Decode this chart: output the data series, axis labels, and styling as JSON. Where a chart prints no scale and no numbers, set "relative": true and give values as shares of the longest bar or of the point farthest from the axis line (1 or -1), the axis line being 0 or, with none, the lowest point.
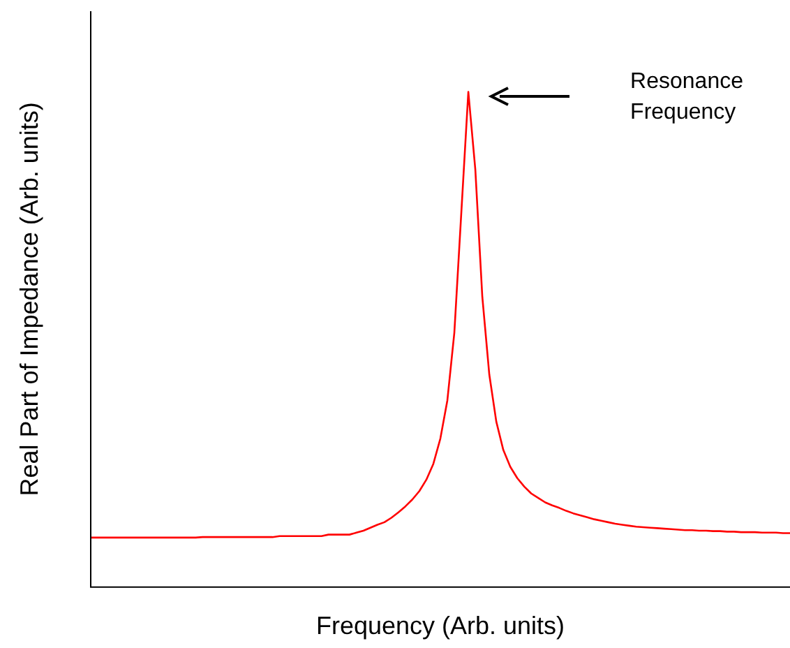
{
  "chart_data": {
    "type": "line",
    "relative": true,
    "xlabel": "Frequency (Arb. units)",
    "ylabel": "Real Part of Impedance (Arb. units)",
    "categories": [
      null,
      null,
      null,
      null,
      null,
      null,
      null,
      null,
      null,
      null,
      null,
      null,
      null,
      null,
      null,
      null,
      null,
      null,
      null,
      null,
      null,
      null,
      null,
      null,
      null,
      null,
      null,
      null,
      null,
      null,
      null,
      null,
      null,
      null,
      null,
      null,
      null,
      null,
      null,
      null,
      null,
      null,
      null,
      null,
      null,
      null,
      null,
      null,
      null,
      null,
      null,
      null,
      null,
      null,
      null,
      null,
      null,
      null,
      null,
      null,
      null,
      null,
      null,
      null,
      null,
      null,
      null,
      null,
      null,
      null,
      null,
      null,
      null,
      null,
      null,
      null,
      null,
      null,
      null,
      null,
      null,
      null,
      null,
      null,
      null,
      null,
      null,
      null,
      null,
      null,
      null,
      null,
      null,
      null,
      null,
      null,
      null,
      null,
      null,
      null,
      null
    ],
    "series": [
      {
        "color": "#ff0000",
        "values": [
          0.1,
          0.1,
          0.1,
          0.1,
          0.1,
          0.1,
          0.1,
          0.1,
          0.1,
          0.1,
          0.1,
          0.1,
          0.1,
          0.1,
          0.1,
          0.1,
          0.101,
          0.101,
          0.101,
          0.101,
          0.101,
          0.101,
          0.101,
          0.101,
          0.101,
          0.101,
          0.101,
          0.103,
          0.103,
          0.103,
          0.103,
          0.103,
          0.103,
          0.103,
          0.106,
          0.106,
          0.106,
          0.106,
          0.11,
          0.114,
          0.12,
          0.126,
          0.131,
          0.14,
          0.151,
          0.163,
          0.177,
          0.194,
          0.217,
          0.249,
          0.3,
          0.377,
          0.514,
          0.757,
          1,
          0.843,
          0.586,
          0.429,
          0.334,
          0.277,
          0.243,
          0.22,
          0.203,
          0.189,
          0.18,
          0.171,
          0.165,
          0.16,
          0.154,
          0.149,
          0.145,
          0.141,
          0.137,
          0.134,
          0.131,
          0.128,
          0.126,
          0.124,
          0.122,
          0.121,
          0.12,
          0.119,
          0.118,
          0.117,
          0.116,
          0.115,
          0.115,
          0.114,
          0.114,
          0.113,
          0.113,
          0.112,
          0.112,
          0.111,
          0.111,
          0.111,
          0.11,
          0.11,
          0.11,
          0.109,
          0.109
        ]
      }
    ],
    "annotations": [
      "Resonance Frequency"
    ],
    "grid": false,
    "legend": false,
    "marker": "none",
    "line_style": "solid"
  }
}
